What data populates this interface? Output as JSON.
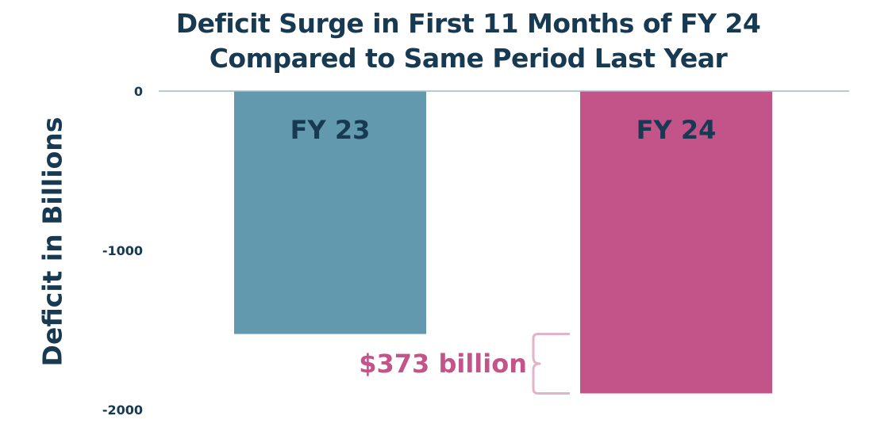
{
  "chart_data": {
    "type": "bar",
    "title_lines": [
      "Deficit Surge in First 11 Months of FY 24",
      "Compared to Same Period Last Year"
    ],
    "xlabel": "",
    "ylabel": "Deficit in Billions",
    "ylim": [
      -2000,
      0
    ],
    "yticks": [
      0,
      -1000,
      -2000
    ],
    "categories": [
      "FY 23",
      "FY 24"
    ],
    "values": [
      -1525,
      -1898
    ],
    "bar_colors": [
      "#6399ae",
      "#c2548a"
    ],
    "annotation": {
      "text": "$373 billion",
      "color": "#c2548a",
      "from_value": -1525,
      "to_value": -1898
    },
    "grid": false,
    "legend": "none"
  },
  "colors": {
    "text": "#173a52",
    "axis_line": "#9fb8c6",
    "bracket": "#e2b3c9"
  }
}
